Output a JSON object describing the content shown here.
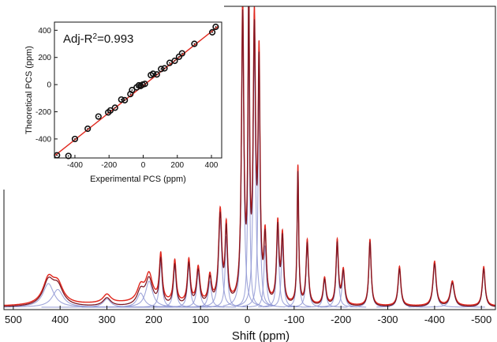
{
  "chart_data": [
    {
      "type": "line",
      "title": "",
      "xlabel": "Shift (ppm)",
      "ylabel": "",
      "x_reversed": true,
      "xlim": [
        520,
        -530
      ],
      "ylim": [
        0,
        1
      ],
      "grid": false,
      "legend": "none",
      "xticks": [
        500,
        400,
        300,
        200,
        100,
        0,
        -100,
        -200,
        -300,
        -400,
        -500
      ],
      "xtick_labels": [
        "500",
        "400",
        "300",
        "200",
        "100",
        "0",
        "-100",
        "-200",
        "-300",
        "-400",
        "-500"
      ],
      "series": [
        {
          "role": "experimental",
          "color": "#e0281e"
        },
        {
          "role": "fitted sum",
          "color": "#7a1522"
        },
        {
          "role": "deconvoluted components",
          "color": "#8f97d4"
        }
      ],
      "peaks": [
        {
          "x": 425,
          "h": 0.1,
          "w": 14
        },
        {
          "x": 405,
          "h": 0.075,
          "w": 14
        },
        {
          "x": 300,
          "h": 0.035,
          "w": 10
        },
        {
          "x": 228,
          "h": 0.06,
          "w": 9
        },
        {
          "x": 210,
          "h": 0.11,
          "w": 9
        },
        {
          "x": 185,
          "h": 0.19,
          "w": 3.5
        },
        {
          "x": 155,
          "h": 0.17,
          "w": 3.5
        },
        {
          "x": 125,
          "h": 0.175,
          "w": 3.5
        },
        {
          "x": 105,
          "h": 0.145,
          "w": 4
        },
        {
          "x": 80,
          "h": 0.11,
          "w": 4
        },
        {
          "x": 58,
          "h": 0.37,
          "w": 4
        },
        {
          "x": 45,
          "h": 0.3,
          "w": 3
        },
        {
          "x": 10,
          "h": 1.2,
          "w": 3
        },
        {
          "x": -3,
          "h": 1.2,
          "w": 2
        },
        {
          "x": -15,
          "h": 1.1,
          "w": 3
        },
        {
          "x": -25,
          "h": 0.95,
          "w": 2.5
        },
        {
          "x": -38,
          "h": 0.26,
          "w": 3
        },
        {
          "x": -65,
          "h": 0.32,
          "w": 3
        },
        {
          "x": -75,
          "h": 0.27,
          "w": 3
        },
        {
          "x": -108,
          "h": 0.56,
          "w": 2
        },
        {
          "x": -128,
          "h": 0.26,
          "w": 3
        },
        {
          "x": -165,
          "h": 0.11,
          "w": 3.5
        },
        {
          "x": -192,
          "h": 0.26,
          "w": 3
        },
        {
          "x": -205,
          "h": 0.14,
          "w": 3.5
        },
        {
          "x": -262,
          "h": 0.27,
          "w": 3
        },
        {
          "x": -325,
          "h": 0.16,
          "w": 3.5
        },
        {
          "x": -400,
          "h": 0.18,
          "w": 4
        },
        {
          "x": -438,
          "h": 0.1,
          "w": 5
        },
        {
          "x": -505,
          "h": 0.16,
          "w": 3.5
        }
      ]
    },
    {
      "type": "scatter",
      "title": "",
      "xlabel": "Experimental PCS (ppm)",
      "ylabel": "Theoretical PCS (ppm)",
      "annotation": {
        "prefix": "Adj-R",
        "sup": "2",
        "suffix": "=0.993"
      },
      "xlim": [
        -520,
        460
      ],
      "ylim": [
        -540,
        460
      ],
      "xticks": [
        -400,
        -200,
        0,
        200,
        400
      ],
      "yticks": [
        -400,
        -200,
        0,
        200,
        400
      ],
      "grid": false,
      "marker_color": "#111111",
      "fit_color": "#e0281e",
      "fit_line": {
        "x": [
          -515,
          440
        ],
        "y": [
          -520,
          430
        ]
      },
      "points": [
        {
          "x": -505,
          "y": -520
        },
        {
          "x": -438,
          "y": -525
        },
        {
          "x": -400,
          "y": -400
        },
        {
          "x": -325,
          "y": -325
        },
        {
          "x": -262,
          "y": -235
        },
        {
          "x": -205,
          "y": -205
        },
        {
          "x": -192,
          "y": -190
        },
        {
          "x": -165,
          "y": -170
        },
        {
          "x": -128,
          "y": -110
        },
        {
          "x": -108,
          "y": -115
        },
        {
          "x": -75,
          "y": -70
        },
        {
          "x": -65,
          "y": -40
        },
        {
          "x": -38,
          "y": -20
        },
        {
          "x": -25,
          "y": -5
        },
        {
          "x": -15,
          "y": -10
        },
        {
          "x": -3,
          "y": 0
        },
        {
          "x": 10,
          "y": 5
        },
        {
          "x": 45,
          "y": 70
        },
        {
          "x": 58,
          "y": 80
        },
        {
          "x": 80,
          "y": 75
        },
        {
          "x": 105,
          "y": 115
        },
        {
          "x": 125,
          "y": 120
        },
        {
          "x": 155,
          "y": 160
        },
        {
          "x": 185,
          "y": 175
        },
        {
          "x": 210,
          "y": 205
        },
        {
          "x": 228,
          "y": 230
        },
        {
          "x": 300,
          "y": 300
        },
        {
          "x": 405,
          "y": 385
        },
        {
          "x": 425,
          "y": 425
        }
      ]
    }
  ]
}
